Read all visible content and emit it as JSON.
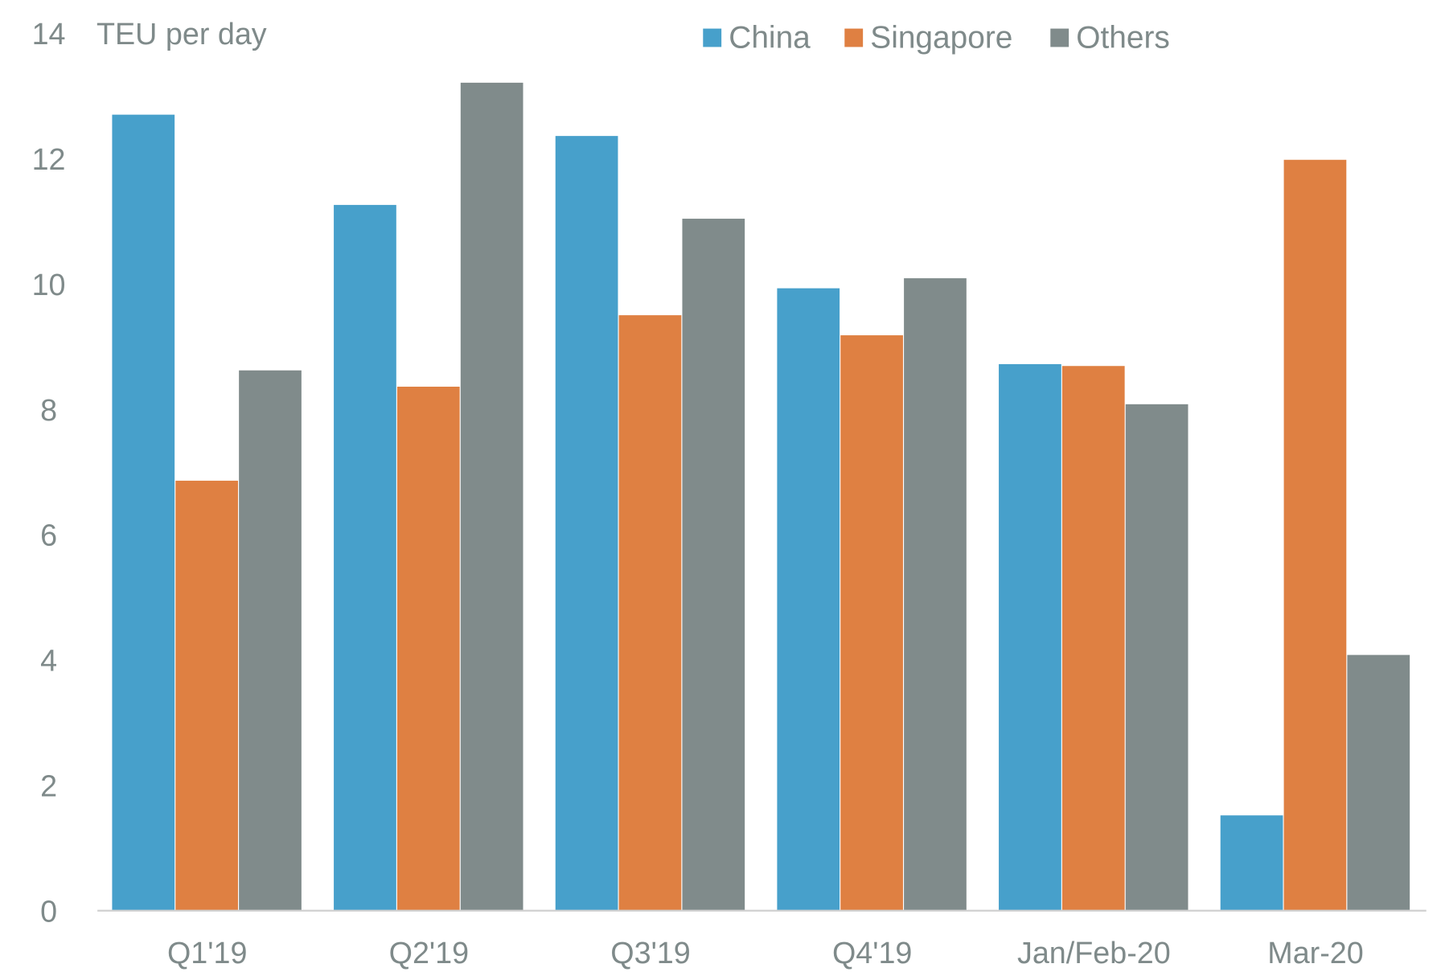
{
  "chart_data": {
    "type": "bar",
    "title": "",
    "ylabel": "TEU per day",
    "xlabel": "",
    "ylim": [
      0,
      14
    ],
    "yticks": [
      0,
      2,
      4,
      6,
      8,
      10,
      12,
      14
    ],
    "grid": false,
    "legend_position": "top",
    "categories": [
      "Q1'19",
      "Q2'19",
      "Q3'19",
      "Q4'19",
      "Jan/Feb-20",
      "Mar-20"
    ],
    "series": [
      {
        "name": "China",
        "color": "#47a0cb",
        "values": [
          12.7,
          11.26,
          12.36,
          9.93,
          8.72,
          1.52
        ]
      },
      {
        "name": "Singapore",
        "color": "#df8042",
        "values": [
          6.86,
          8.36,
          9.5,
          9.18,
          8.69,
          11.98
        ]
      },
      {
        "name": "Others",
        "color": "#808b8b",
        "values": [
          8.62,
          13.21,
          11.04,
          10.09,
          8.08,
          4.08
        ]
      }
    ]
  }
}
